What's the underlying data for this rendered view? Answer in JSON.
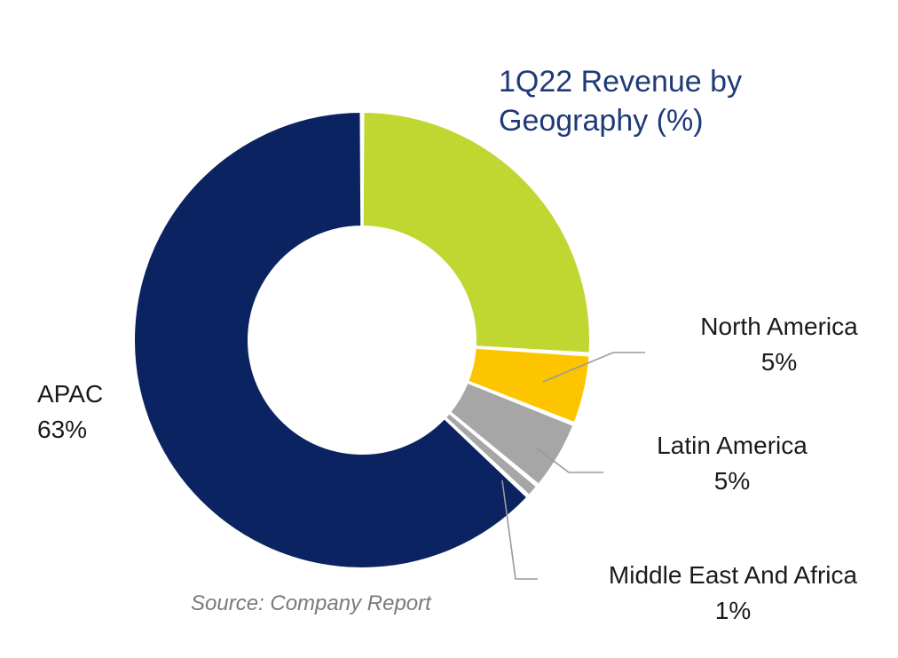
{
  "chart_data": {
    "type": "pie",
    "variant": "donut",
    "title": "1Q22 Revenue by Geography (%)",
    "slices": [
      {
        "name": "",
        "value": 26,
        "value_label": "",
        "color": "#bfd730"
      },
      {
        "name": "North America",
        "value": 5,
        "value_label": "5%",
        "color": "#fcc500"
      },
      {
        "name": "Latin America",
        "value": 5,
        "value_label": "5%",
        "color": "#a6a6a6"
      },
      {
        "name": "Middle East And Africa",
        "value": 1,
        "value_label": "1%",
        "color": "#a6a6a6"
      },
      {
        "name": "APAC",
        "value": 63,
        "value_label": "63%",
        "color": "#0b2360"
      }
    ],
    "source": "Source: Company Report"
  }
}
